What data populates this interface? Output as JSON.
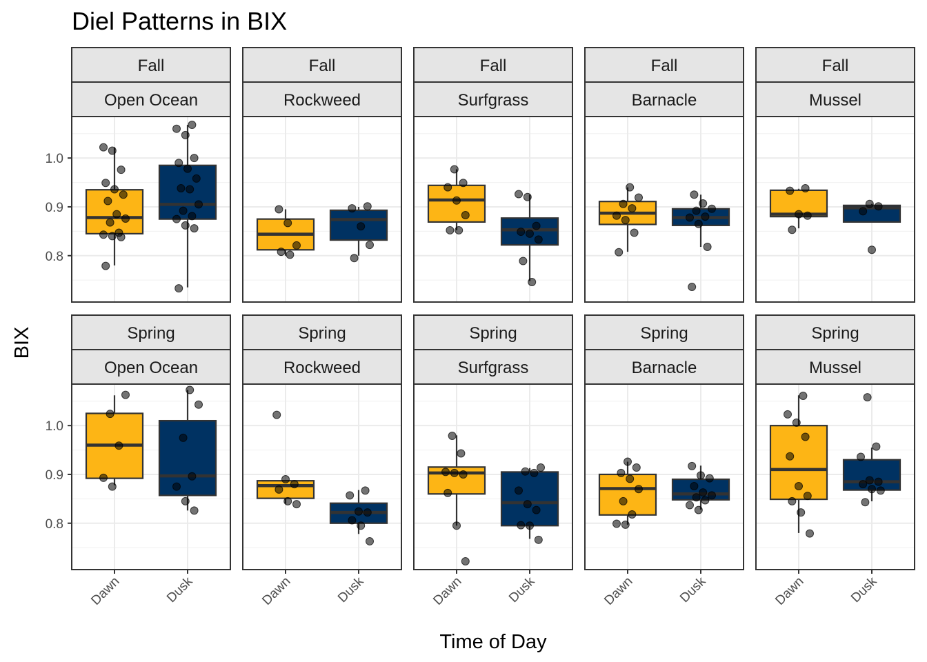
{
  "chart_data": {
    "type": "boxplot",
    "title": "Diel Patterns in BIX",
    "xlabel": "Time of Day",
    "ylabel": "BIX",
    "categories": [
      "Dawn",
      "Dusk"
    ],
    "y_ticks": [
      "0.8",
      "0.9",
      "1.0"
    ],
    "ylim": [
      0.705,
      1.085
    ],
    "grid": true,
    "colors": {
      "Dawn": "#FDB515",
      "Dusk": "#003262"
    },
    "panels": [
      {
        "season": "Fall",
        "site": "Open Ocean",
        "boxes": [
          {
            "category": "Dawn",
            "q1": 0.845,
            "median": 0.878,
            "q3": 0.935,
            "whisker_low": 0.78,
            "whisker_high": 1.022,
            "points": [
              1.022,
              1.015,
              0.976,
              0.949,
              0.936,
              0.925,
              0.912,
              0.885,
              0.876,
              0.868,
              0.847,
              0.843,
              0.84,
              0.838,
              0.779
            ]
          },
          {
            "category": "Dusk",
            "q1": 0.875,
            "median": 0.905,
            "q3": 0.985,
            "whisker_low": 0.735,
            "whisker_high": 1.068,
            "points": [
              1.068,
              1.06,
              1.047,
              1.0,
              0.99,
              0.978,
              0.958,
              0.938,
              0.936,
              0.905,
              0.892,
              0.881,
              0.875,
              0.862,
              0.856,
              0.733
            ]
          }
        ]
      },
      {
        "season": "Fall",
        "site": "Rockweed",
        "boxes": [
          {
            "category": "Dawn",
            "q1": 0.812,
            "median": 0.844,
            "q3": 0.875,
            "whisker_low": 0.8,
            "whisker_high": 0.895,
            "points": [
              0.895,
              0.867,
              0.821,
              0.808,
              0.802
            ]
          },
          {
            "category": "Dusk",
            "q1": 0.832,
            "median": 0.874,
            "q3": 0.893,
            "whisker_low": 0.8,
            "whisker_high": 0.9,
            "points": [
              0.901,
              0.897,
              0.86,
              0.822,
              0.795
            ]
          }
        ]
      },
      {
        "season": "Fall",
        "site": "Surfgrass",
        "boxes": [
          {
            "category": "Dawn",
            "q1": 0.869,
            "median": 0.914,
            "q3": 0.944,
            "whisker_low": 0.852,
            "whisker_high": 0.977,
            "points": [
              0.977,
              0.949,
              0.94,
              0.913,
              0.883,
              0.852,
              0.852
            ]
          },
          {
            "category": "Dusk",
            "q1": 0.822,
            "median": 0.853,
            "q3": 0.877,
            "whisker_low": 0.748,
            "whisker_high": 0.925,
            "points": [
              0.926,
              0.92,
              0.861,
              0.849,
              0.845,
              0.833,
              0.789,
              0.746
            ]
          }
        ]
      },
      {
        "season": "Fall",
        "site": "Barnacle",
        "boxes": [
          {
            "category": "Dawn",
            "q1": 0.864,
            "median": 0.887,
            "q3": 0.911,
            "whisker_low": 0.808,
            "whisker_high": 0.94,
            "points": [
              0.94,
              0.919,
              0.906,
              0.897,
              0.882,
              0.873,
              0.847,
              0.807
            ]
          },
          {
            "category": "Dusk",
            "q1": 0.862,
            "median": 0.878,
            "q3": 0.896,
            "whisker_low": 0.818,
            "whisker_high": 0.925,
            "points": [
              0.925,
              0.907,
              0.896,
              0.892,
              0.88,
              0.878,
              0.865,
              0.818,
              0.736
            ]
          }
        ]
      },
      {
        "season": "Fall",
        "site": "Mussel",
        "boxes": [
          {
            "category": "Dawn",
            "q1": 0.88,
            "median": 0.885,
            "q3": 0.934,
            "whisker_low": 0.856,
            "whisker_high": 0.937,
            "points": [
              0.938,
              0.933,
              0.885,
              0.882,
              0.853
            ]
          },
          {
            "category": "Dusk",
            "q1": 0.869,
            "median": 0.898,
            "q3": 0.903,
            "whisker_low": 0.869,
            "whisker_high": 0.906,
            "points": [
              0.906,
              0.901,
              0.891,
              0.812
            ]
          }
        ]
      },
      {
        "season": "Spring",
        "site": "Open Ocean",
        "boxes": [
          {
            "category": "Dawn",
            "q1": 0.892,
            "median": 0.96,
            "q3": 1.025,
            "whisker_low": 0.878,
            "whisker_high": 1.062,
            "points": [
              1.063,
              1.024,
              0.959,
              0.893,
              0.875
            ]
          },
          {
            "category": "Dusk",
            "q1": 0.857,
            "median": 0.897,
            "q3": 1.01,
            "whisker_low": 0.826,
            "whisker_high": 1.073,
            "points": [
              1.073,
              1.043,
              0.975,
              0.896,
              0.875,
              0.845,
              0.826
            ]
          }
        ]
      },
      {
        "season": "Spring",
        "site": "Rockweed",
        "boxes": [
          {
            "category": "Dawn",
            "q1": 0.851,
            "median": 0.877,
            "q3": 0.887,
            "whisker_low": 0.84,
            "whisker_high": 0.887,
            "points": [
              1.022,
              0.89,
              0.88,
              0.869,
              0.845,
              0.839
            ]
          },
          {
            "category": "Dusk",
            "q1": 0.8,
            "median": 0.822,
            "q3": 0.841,
            "whisker_low": 0.778,
            "whisker_high": 0.868,
            "points": [
              0.867,
              0.857,
              0.824,
              0.822,
              0.806,
              0.795,
              0.763
            ]
          }
        ]
      },
      {
        "season": "Spring",
        "site": "Surfgrass",
        "boxes": [
          {
            "category": "Dawn",
            "q1": 0.86,
            "median": 0.903,
            "q3": 0.915,
            "whisker_low": 0.795,
            "whisker_high": 0.98,
            "points": [
              0.979,
              0.943,
              0.905,
              0.903,
              0.9,
              0.862,
              0.795,
              0.722
            ]
          },
          {
            "category": "Dusk",
            "q1": 0.795,
            "median": 0.842,
            "q3": 0.905,
            "whisker_low": 0.768,
            "whisker_high": 0.913,
            "points": [
              0.914,
              0.906,
              0.903,
              0.867,
              0.839,
              0.827,
              0.796,
              0.795,
              0.766
            ]
          }
        ]
      },
      {
        "season": "Spring",
        "site": "Barnacle",
        "boxes": [
          {
            "category": "Dawn",
            "q1": 0.817,
            "median": 0.871,
            "q3": 0.9,
            "whisker_low": 0.797,
            "whisker_high": 0.926,
            "points": [
              0.926,
              0.914,
              0.903,
              0.891,
              0.87,
              0.845,
              0.818,
              0.799,
              0.797
            ]
          },
          {
            "category": "Dusk",
            "q1": 0.848,
            "median": 0.86,
            "q3": 0.89,
            "whisker_low": 0.828,
            "whisker_high": 0.918,
            "points": [
              0.917,
              0.898,
              0.892,
              0.876,
              0.863,
              0.857,
              0.853,
              0.847,
              0.837,
              0.827
            ]
          }
        ]
      },
      {
        "season": "Spring",
        "site": "Mussel",
        "boxes": [
          {
            "category": "Dawn",
            "q1": 0.849,
            "median": 0.91,
            "q3": 1.0,
            "whisker_low": 0.78,
            "whisker_high": 1.062,
            "points": [
              1.061,
              1.023,
              1.006,
              0.977,
              0.937,
              0.876,
              0.856,
              0.845,
              0.822,
              0.779
            ]
          },
          {
            "category": "Dusk",
            "q1": 0.868,
            "median": 0.885,
            "q3": 0.93,
            "whisker_low": 0.845,
            "whisker_high": 0.955,
            "points": [
              1.058,
              0.957,
              0.936,
              0.888,
              0.885,
              0.88,
              0.87,
              0.867,
              0.843
            ]
          }
        ]
      }
    ]
  }
}
